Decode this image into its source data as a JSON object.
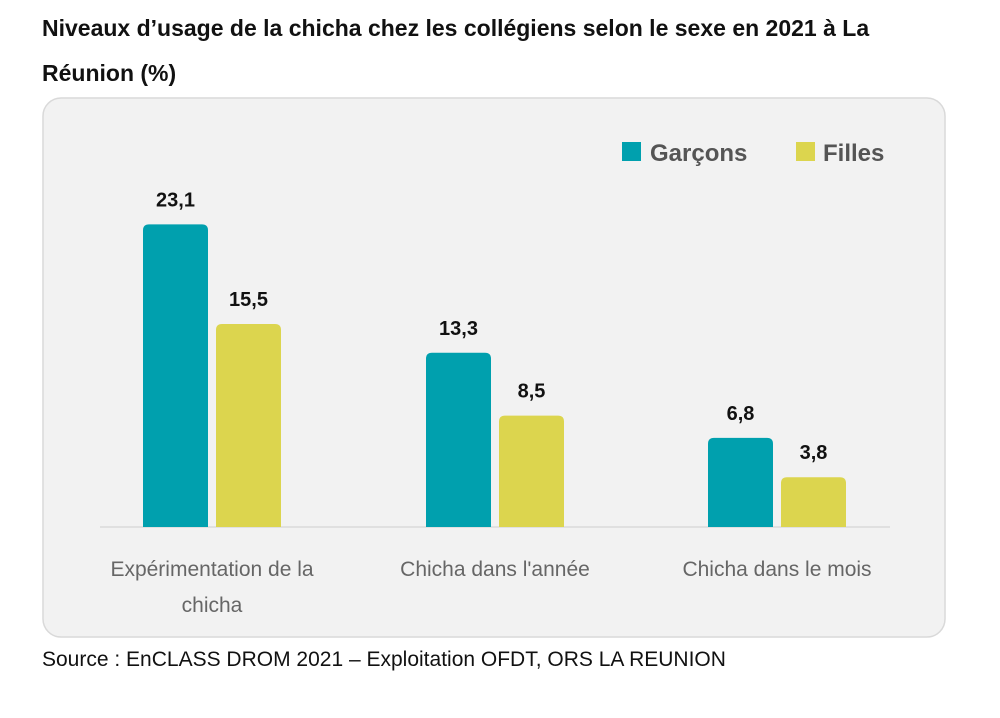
{
  "chart_data": {
    "type": "bar",
    "title": "Niveaux d’usage de la chicha chez les collégiens selon le sexe en 2021 à La Réunion (%)",
    "categories": [
      [
        "Expérimentation de la",
        "chicha"
      ],
      [
        "Chicha dans l'année"
      ],
      [
        "Chicha dans le mois"
      ]
    ],
    "series": [
      {
        "name": "Garçons",
        "values": [
          23.1,
          13.3,
          6.8
        ],
        "labels": [
          "23,1",
          "13,3",
          "6,8"
        ],
        "color": "#00a0ae"
      },
      {
        "name": "Filles",
        "values": [
          15.5,
          8.5,
          3.8
        ],
        "labels": [
          "15,5",
          "8,5",
          "3,8"
        ],
        "color": "#dcd54e"
      }
    ],
    "ylim": [
      0,
      25
    ],
    "grid": false,
    "legend": "top-right",
    "source": "Source : EnCLASS DROM 2021 – Exploitation OFDT, ORS LA REUNION"
  }
}
